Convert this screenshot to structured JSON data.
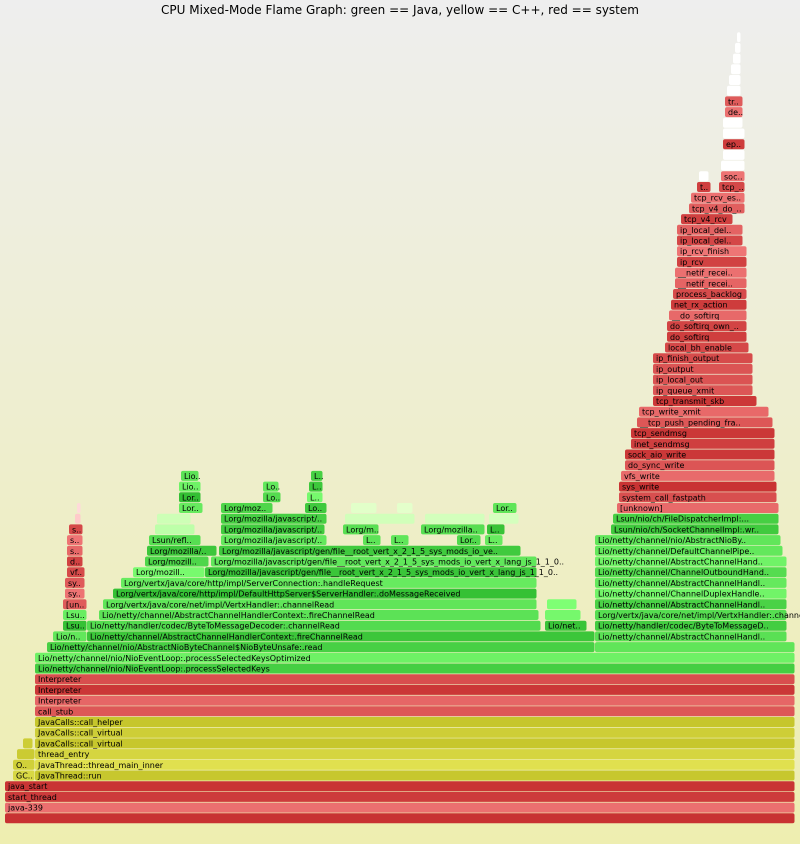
{
  "chart_data": {
    "type": "flamegraph",
    "title": "CPU Mixed-Mode Flame Graph: green == Java, yellow == C++, red == system",
    "xlim": [
      0,
      790
    ],
    "color_key": {
      "java": "#3cc83c",
      "cpp": "#cdcd3c",
      "system": "#e45050"
    },
    "frames": [
      {
        "name": "",
        "x": 0,
        "w": 790,
        "depth": 0,
        "kind": "system"
      },
      {
        "name": "java-339",
        "x": 0,
        "w": 790,
        "depth": 1,
        "kind": "system"
      },
      {
        "name": "start_thread",
        "x": 0,
        "w": 790,
        "depth": 2,
        "kind": "system"
      },
      {
        "name": "java_start",
        "x": 0,
        "w": 790,
        "depth": 3,
        "kind": "system"
      },
      {
        "name": "GC..",
        "x": 8,
        "w": 22,
        "depth": 4,
        "kind": "cpp"
      },
      {
        "name": "JavaThread::run",
        "x": 30,
        "w": 760,
        "depth": 4,
        "kind": "cpp"
      },
      {
        "name": "O..",
        "x": 8,
        "w": 22,
        "depth": 5,
        "kind": "cpp"
      },
      {
        "name": "JavaThread::thread_main_inner",
        "x": 30,
        "w": 760,
        "depth": 5,
        "kind": "cpp"
      },
      {
        "name": "",
        "x": 12,
        "w": 18,
        "depth": 6,
        "kind": "cpp"
      },
      {
        "name": "thread_entry",
        "x": 30,
        "w": 760,
        "depth": 6,
        "kind": "cpp"
      },
      {
        "name": "",
        "x": 18,
        "w": 10,
        "depth": 7,
        "kind": "cpp"
      },
      {
        "name": "JavaCalls::call_virtual",
        "x": 30,
        "w": 760,
        "depth": 7,
        "kind": "cpp"
      },
      {
        "name": "JavaCalls::call_virtual",
        "x": 30,
        "w": 760,
        "depth": 8,
        "kind": "cpp"
      },
      {
        "name": "JavaCalls::call_helper",
        "x": 30,
        "w": 760,
        "depth": 9,
        "kind": "cpp"
      },
      {
        "name": "call_stub",
        "x": 30,
        "w": 760,
        "depth": 10,
        "kind": "system"
      },
      {
        "name": "Interpreter",
        "x": 30,
        "w": 760,
        "depth": 11,
        "kind": "system"
      },
      {
        "name": "Interpreter",
        "x": 30,
        "w": 760,
        "depth": 12,
        "kind": "system"
      },
      {
        "name": "Interpreter",
        "x": 30,
        "w": 760,
        "depth": 13,
        "kind": "system"
      },
      {
        "name": "Lio/netty/channel/nio/NioEventLoop:.processSelectedKeys",
        "x": 30,
        "w": 760,
        "depth": 14,
        "kind": "java"
      },
      {
        "name": "Lio/netty/channel/nio/NioEventLoop:.processSelectedKeysOptimized",
        "x": 30,
        "w": 760,
        "depth": 15,
        "kind": "java"
      },
      {
        "name": "Lio/netty/channel/nio/AbstractNioByteChannel$NioByteUnsafe:.read",
        "x": 42,
        "w": 548,
        "depth": 16,
        "kind": "java"
      },
      {
        "name": "",
        "x": 590,
        "w": 200,
        "depth": 16,
        "kind": "java"
      },
      {
        "name": "Lio/n..",
        "x": 48,
        "w": 34,
        "depth": 17,
        "kind": "java"
      },
      {
        "name": "Lio/netty/channel/AbstractChannelHandlerContext:.fireChannelRead",
        "x": 82,
        "w": 508,
        "depth": 17,
        "kind": "java"
      },
      {
        "name": "Lio/netty/channel/AbstractChannelHandl..",
        "x": 590,
        "w": 192,
        "depth": 17,
        "kind": "java"
      },
      {
        "name": "Lsu..",
        "x": 58,
        "w": 24,
        "depth": 18,
        "kind": "java"
      },
      {
        "name": "Lio/netty/handler/codec/ByteToMessageDecoder:.channelRead",
        "x": 82,
        "w": 454,
        "depth": 18,
        "kind": "java"
      },
      {
        "name": "Lio/net..",
        "x": 540,
        "w": 42,
        "depth": 18,
        "kind": "java"
      },
      {
        "name": "Lio/netty/handler/codec/ByteToMessageD..",
        "x": 590,
        "w": 192,
        "depth": 18,
        "kind": "java"
      },
      {
        "name": "Lsu..",
        "x": 58,
        "w": 24,
        "depth": 19,
        "kind": "java"
      },
      {
        "name": "Lio/netty/channel/AbstractChannelHandlerContext:.fireChannelRead",
        "x": 94,
        "w": 440,
        "depth": 19,
        "kind": "java"
      },
      {
        "name": "",
        "x": 540,
        "w": 36,
        "depth": 19,
        "kind": "java"
      },
      {
        "name": "Lorg/vertx/java/core/net/impl/VertxHandler:.channelRead",
        "x": 590,
        "w": 192,
        "depth": 19,
        "kind": "java"
      },
      {
        "name": "[un..",
        "x": 58,
        "w": 24,
        "depth": 20,
        "kind": "system"
      },
      {
        "name": "Lorg/vertx/java/core/net/impl/VertxHandler:.channelRead",
        "x": 98,
        "w": 434,
        "depth": 20,
        "kind": "java"
      },
      {
        "name": "",
        "x": 542,
        "w": 30,
        "depth": 20,
        "kind": "java"
      },
      {
        "name": "Lio/netty/channel/AbstractChannelHandl..",
        "x": 590,
        "w": 192,
        "depth": 20,
        "kind": "java"
      },
      {
        "name": "sy..",
        "x": 60,
        "w": 20,
        "depth": 21,
        "kind": "system"
      },
      {
        "name": "Lorg/vertx/java/core/http/impl/DefaultHttpServer$ServerHandler:.doMessageReceived",
        "x": 108,
        "w": 424,
        "depth": 21,
        "kind": "java"
      },
      {
        "name": "Lio/netty/channel/ChannelDuplexHandle..",
        "x": 590,
        "w": 192,
        "depth": 21,
        "kind": "java"
      },
      {
        "name": "sy..",
        "x": 60,
        "w": 20,
        "depth": 22,
        "kind": "system"
      },
      {
        "name": "Lorg/vertx/java/core/http/impl/ServerConnection:.handleRequest",
        "x": 116,
        "w": 416,
        "depth": 22,
        "kind": "java"
      },
      {
        "name": "Lio/netty/channel/AbstractChannelHandl..",
        "x": 590,
        "w": 192,
        "depth": 22,
        "kind": "java"
      },
      {
        "name": "vf..",
        "x": 62,
        "w": 18,
        "depth": 23,
        "kind": "system"
      },
      {
        "name": "Lorg/mozill..",
        "x": 128,
        "w": 72,
        "depth": 23,
        "kind": "java"
      },
      {
        "name": "Lorg/mozilla/javascript/gen/file__root_vert_x_2_1_5_sys_mods_io_vert_x_lang_js_1_1_0..",
        "x": 200,
        "w": 332,
        "depth": 23,
        "kind": "java"
      },
      {
        "name": "Lio/netty/channel/ChannelOutboundHand..",
        "x": 590,
        "w": 192,
        "depth": 23,
        "kind": "java"
      },
      {
        "name": "d..",
        "x": 62,
        "w": 16,
        "depth": 24,
        "kind": "system"
      },
      {
        "name": "Lorg/mozill..",
        "x": 140,
        "w": 64,
        "depth": 24,
        "kind": "java"
      },
      {
        "name": "Lorg/mozilla/javascript/gen/file__root_vert_x_2_1_5_sys_mods_io_vert_x_lang_js_1_1_0..",
        "x": 206,
        "w": 326,
        "depth": 24,
        "kind": "java"
      },
      {
        "name": "Lio/netty/channel/AbstractChannelHand..",
        "x": 590,
        "w": 192,
        "depth": 24,
        "kind": "java"
      },
      {
        "name": "s..",
        "x": 62,
        "w": 16,
        "depth": 25,
        "kind": "system"
      },
      {
        "name": "Lorg/mozilla/..",
        "x": 142,
        "w": 70,
        "depth": 25,
        "kind": "java"
      },
      {
        "name": "Lorg/mozilla/javascript/gen/file__root_vert_x_2_1_5_sys_mods_io_ve..",
        "x": 214,
        "w": 302,
        "depth": 25,
        "kind": "java"
      },
      {
        "name": "Lio/netty/channel/DefaultChannelPipe..",
        "x": 590,
        "w": 188,
        "depth": 25,
        "kind": "java"
      },
      {
        "name": "s..",
        "x": 62,
        "w": 16,
        "depth": 26,
        "kind": "system"
      },
      {
        "name": "Lsun/refl..",
        "x": 144,
        "w": 52,
        "depth": 26,
        "kind": "java"
      },
      {
        "name": "Lorg/mozilla/javascript/..",
        "x": 216,
        "w": 106,
        "depth": 26,
        "kind": "java"
      },
      {
        "name": "L..",
        "x": 358,
        "w": 18,
        "depth": 26,
        "kind": "java"
      },
      {
        "name": "L..",
        "x": 386,
        "w": 18,
        "depth": 26,
        "kind": "java"
      },
      {
        "name": "Lor..",
        "x": 452,
        "w": 24,
        "depth": 26,
        "kind": "java"
      },
      {
        "name": "L..",
        "x": 480,
        "w": 18,
        "depth": 26,
        "kind": "java"
      },
      {
        "name": "Lio/netty/channel/nio/AbstractNioBy..",
        "x": 590,
        "w": 186,
        "depth": 26,
        "kind": "java"
      },
      {
        "name": "s..",
        "x": 64,
        "w": 14,
        "depth": 27,
        "kind": "system"
      },
      {
        "name": "",
        "x": 150,
        "w": 40,
        "depth": 27,
        "kind": "java"
      },
      {
        "name": "Lorg/mozilla/javascript/..",
        "x": 216,
        "w": 104,
        "depth": 27,
        "kind": "java"
      },
      {
        "name": "Lorg/m..",
        "x": 338,
        "w": 36,
        "depth": 27,
        "kind": "java"
      },
      {
        "name": "Lorg/mozilla..",
        "x": 416,
        "w": 64,
        "depth": 27,
        "kind": "java"
      },
      {
        "name": "L..",
        "x": 482,
        "w": 18,
        "depth": 27,
        "kind": "java"
      },
      {
        "name": "Lsun/nio/ch/SocketChannelImpl:.wr..",
        "x": 606,
        "w": 168,
        "depth": 27,
        "kind": "java"
      },
      {
        "name": "",
        "x": 70,
        "w": 6,
        "depth": 28,
        "kind": "system"
      },
      {
        "name": "",
        "x": 152,
        "w": 34,
        "depth": 28,
        "kind": "java"
      },
      {
        "name": "Lorg/mozilla/javascript/..",
        "x": 216,
        "w": 106,
        "depth": 28,
        "kind": "java"
      },
      {
        "name": "",
        "x": 340,
        "w": 70,
        "depth": 28,
        "kind": "java"
      },
      {
        "name": "",
        "x": 420,
        "w": 60,
        "depth": 28,
        "kind": "java"
      },
      {
        "name": "",
        "x": 484,
        "w": 30,
        "depth": 28,
        "kind": "java"
      },
      {
        "name": "Lsun/nio/ch/FileDispatcherImpl:...",
        "x": 608,
        "w": 166,
        "depth": 28,
        "kind": "java"
      },
      {
        "name": "",
        "x": 72,
        "w": 4,
        "depth": 29,
        "kind": "system"
      },
      {
        "name": "Lor..",
        "x": 174,
        "w": 24,
        "depth": 29,
        "kind": "java"
      },
      {
        "name": "Lorg/moz..",
        "x": 216,
        "w": 52,
        "depth": 29,
        "kind": "java"
      },
      {
        "name": "Lo..",
        "x": 300,
        "w": 22,
        "depth": 29,
        "kind": "java"
      },
      {
        "name": "",
        "x": 346,
        "w": 26,
        "depth": 29,
        "kind": "java"
      },
      {
        "name": "",
        "x": 392,
        "w": 16,
        "depth": 29,
        "kind": "java"
      },
      {
        "name": "Lor..",
        "x": 488,
        "w": 24,
        "depth": 29,
        "kind": "java"
      },
      {
        "name": "[unknown]",
        "x": 612,
        "w": 162,
        "depth": 29,
        "kind": "system"
      },
      {
        "name": "Lor..",
        "x": 174,
        "w": 22,
        "depth": 30,
        "kind": "java"
      },
      {
        "name": "Lo..",
        "x": 258,
        "w": 18,
        "depth": 30,
        "kind": "java"
      },
      {
        "name": "L..",
        "x": 302,
        "w": 16,
        "depth": 30,
        "kind": "java"
      },
      {
        "name": "system_call_fastpath",
        "x": 614,
        "w": 158,
        "depth": 30,
        "kind": "system"
      },
      {
        "name": "Lio..",
        "x": 174,
        "w": 22,
        "depth": 31,
        "kind": "java"
      },
      {
        "name": "Lo..",
        "x": 258,
        "w": 16,
        "depth": 31,
        "kind": "java"
      },
      {
        "name": "L..",
        "x": 304,
        "w": 14,
        "depth": 31,
        "kind": "java"
      },
      {
        "name": "sys_write",
        "x": 614,
        "w": 158,
        "depth": 31,
        "kind": "system"
      },
      {
        "name": "Lio..",
        "x": 176,
        "w": 18,
        "depth": 32,
        "kind": "java"
      },
      {
        "name": "L..",
        "x": 306,
        "w": 12,
        "depth": 32,
        "kind": "java"
      },
      {
        "name": "vfs_write",
        "x": 616,
        "w": 154,
        "depth": 32,
        "kind": "system"
      },
      {
        "name": "do_sync_write",
        "x": 620,
        "w": 150,
        "depth": 33,
        "kind": "system"
      },
      {
        "name": "sock_aio_write",
        "x": 620,
        "w": 150,
        "depth": 34,
        "kind": "system"
      },
      {
        "name": "inet_sendmsg",
        "x": 626,
        "w": 144,
        "depth": 35,
        "kind": "system"
      },
      {
        "name": "tcp_sendmsg",
        "x": 626,
        "w": 144,
        "depth": 36,
        "kind": "system"
      },
      {
        "name": "__tcp_push_pending_fra..",
        "x": 632,
        "w": 136,
        "depth": 37,
        "kind": "system"
      },
      {
        "name": "tcp_write_xmit",
        "x": 634,
        "w": 130,
        "depth": 38,
        "kind": "system"
      },
      {
        "name": "tcp_transmit_skb",
        "x": 648,
        "w": 104,
        "depth": 39,
        "kind": "system"
      },
      {
        "name": "ip_queue_xmit",
        "x": 648,
        "w": 100,
        "depth": 40,
        "kind": "system"
      },
      {
        "name": "ip_local_out",
        "x": 648,
        "w": 100,
        "depth": 41,
        "kind": "system"
      },
      {
        "name": "ip_output",
        "x": 648,
        "w": 100,
        "depth": 42,
        "kind": "system"
      },
      {
        "name": "ip_finish_output",
        "x": 648,
        "w": 100,
        "depth": 43,
        "kind": "system"
      },
      {
        "name": "local_bh_enable",
        "x": 660,
        "w": 84,
        "depth": 44,
        "kind": "system"
      },
      {
        "name": "do_softirq",
        "x": 662,
        "w": 80,
        "depth": 45,
        "kind": "system"
      },
      {
        "name": "do_softirq_own_..",
        "x": 662,
        "w": 80,
        "depth": 46,
        "kind": "system"
      },
      {
        "name": "__do_softirq",
        "x": 664,
        "w": 78,
        "depth": 47,
        "kind": "system"
      },
      {
        "name": "net_rx_action",
        "x": 666,
        "w": 76,
        "depth": 48,
        "kind": "system"
      },
      {
        "name": "process_backlog",
        "x": 668,
        "w": 74,
        "depth": 49,
        "kind": "system"
      },
      {
        "name": "__netif_recei..",
        "x": 670,
        "w": 72,
        "depth": 50,
        "kind": "system"
      },
      {
        "name": "__netif_recei..",
        "x": 670,
        "w": 72,
        "depth": 51,
        "kind": "system"
      },
      {
        "name": "ip_rcv",
        "x": 672,
        "w": 70,
        "depth": 52,
        "kind": "system"
      },
      {
        "name": "ip_rcv_finish",
        "x": 672,
        "w": 70,
        "depth": 53,
        "kind": "system"
      },
      {
        "name": "ip_local_del..",
        "x": 672,
        "w": 66,
        "depth": 54,
        "kind": "system"
      },
      {
        "name": "ip_local_del..",
        "x": 672,
        "w": 66,
        "depth": 55,
        "kind": "system"
      },
      {
        "name": "tcp_v4_rcv",
        "x": 676,
        "w": 52,
        "depth": 56,
        "kind": "system"
      },
      {
        "name": "tcp_v4_do_..",
        "x": 684,
        "w": 56,
        "depth": 57,
        "kind": "system"
      },
      {
        "name": "tcp_rcv_es..",
        "x": 686,
        "w": 54,
        "depth": 58,
        "kind": "system"
      },
      {
        "name": "t..",
        "x": 692,
        "w": 14,
        "depth": 59,
        "kind": "system"
      },
      {
        "name": "tcp_..",
        "x": 714,
        "w": 26,
        "depth": 59,
        "kind": "system"
      },
      {
        "name": "",
        "x": 694,
        "w": 10,
        "depth": 60,
        "kind": "system"
      },
      {
        "name": "soc..",
        "x": 716,
        "w": 24,
        "depth": 60,
        "kind": "system"
      },
      {
        "name": "",
        "x": 716,
        "w": 24,
        "depth": 61,
        "kind": "system"
      },
      {
        "name": "",
        "x": 718,
        "w": 22,
        "depth": 62,
        "kind": "system"
      },
      {
        "name": "ep..",
        "x": 718,
        "w": 22,
        "depth": 63,
        "kind": "system"
      },
      {
        "name": "",
        "x": 718,
        "w": 22,
        "depth": 64,
        "kind": "system"
      },
      {
        "name": "",
        "x": 718,
        "w": 20,
        "depth": 65,
        "kind": "system"
      },
      {
        "name": "de..",
        "x": 720,
        "w": 18,
        "depth": 66,
        "kind": "system"
      },
      {
        "name": "tr..",
        "x": 720,
        "w": 18,
        "depth": 67,
        "kind": "system"
      },
      {
        "name": "",
        "x": 722,
        "w": 14,
        "depth": 68,
        "kind": "system"
      },
      {
        "name": "",
        "x": 724,
        "w": 12,
        "depth": 69,
        "kind": "system"
      },
      {
        "name": "",
        "x": 726,
        "w": 10,
        "depth": 70,
        "kind": "system"
      },
      {
        "name": "",
        "x": 728,
        "w": 8,
        "depth": 71,
        "kind": "system"
      },
      {
        "name": "",
        "x": 730,
        "w": 6,
        "depth": 72,
        "kind": "system"
      },
      {
        "name": "",
        "x": 732,
        "w": 4,
        "depth": 73,
        "kind": "system"
      }
    ]
  }
}
